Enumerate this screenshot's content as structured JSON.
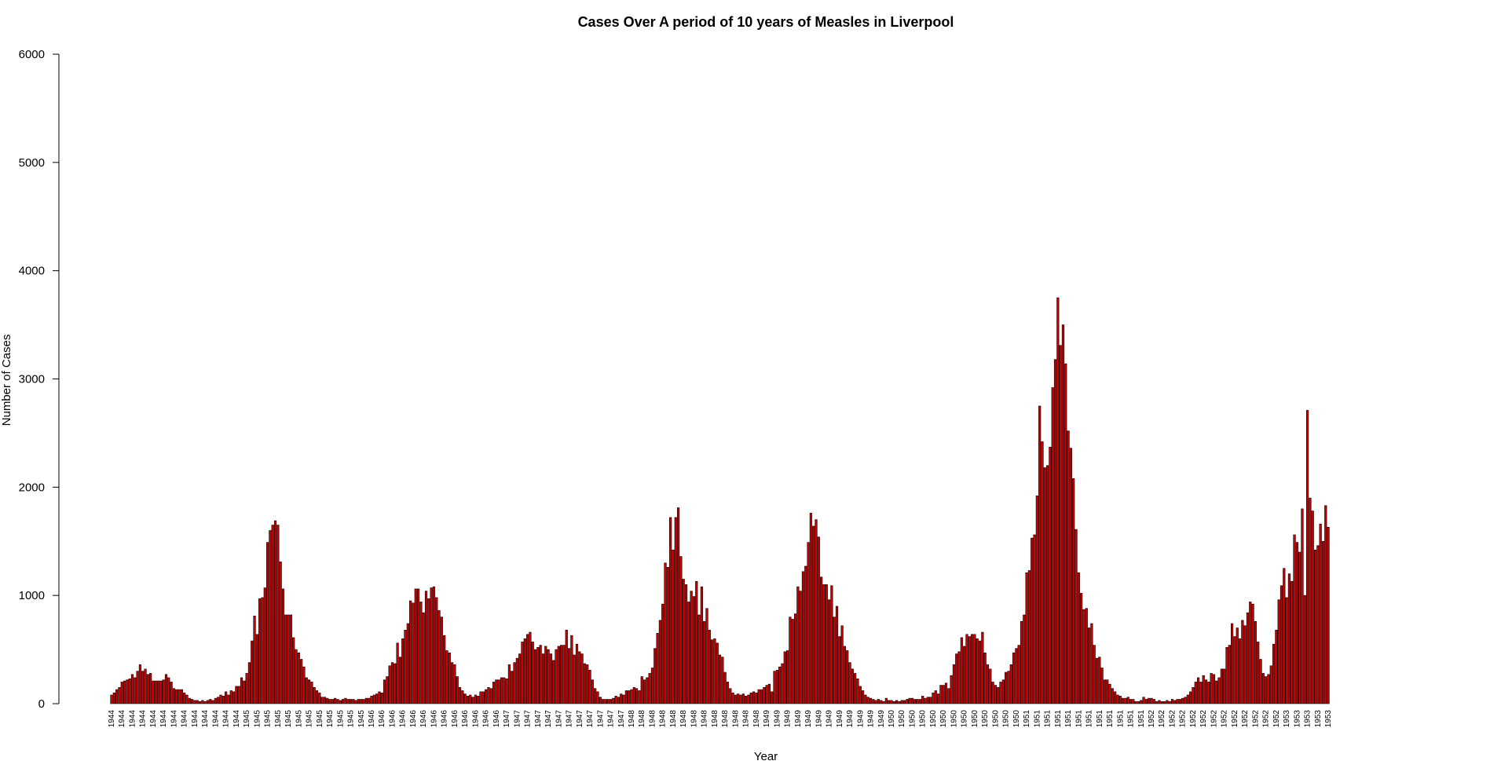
{
  "chart_data": {
    "type": "bar",
    "title": "Cases Over A period of 10 years of Measles in Liverpool",
    "xlabel": "Year",
    "ylabel": "Number of Cases",
    "ylim": [
      0,
      6000
    ],
    "yticks": [
      0,
      1000,
      2000,
      3000,
      4000,
      5000,
      6000
    ],
    "bar_color": "#cc0000",
    "bar_edge_color": "#000000",
    "grid": false,
    "legend": "none",
    "note": "Weekly counts, x tick labels show year; bars extend past right edge of plot (clipped).",
    "series": [
      {
        "year": "1944",
        "values": [
          80,
          100,
          130,
          150,
          200,
          210,
          220,
          230,
          270,
          240,
          300,
          360,
          300,
          320,
          270,
          280,
          210,
          210,
          210,
          210,
          220,
          270,
          240,
          200,
          140,
          130,
          130,
          130,
          100,
          80,
          50,
          40,
          30,
          30,
          20,
          30,
          20,
          30,
          40,
          30,
          50,
          60,
          80,
          70,
          110,
          80,
          120,
          110,
          160,
          160
        ]
      },
      {
        "year": "1945",
        "values": [
          240,
          210,
          280,
          380,
          580,
          810,
          640,
          970,
          980,
          1070,
          1490,
          1600,
          1650,
          1690,
          1650,
          1310,
          1060,
          820,
          820,
          820,
          610,
          500,
          470,
          410,
          340,
          240,
          220,
          200,
          150,
          120,
          100,
          60,
          60,
          50,
          40,
          40,
          50,
          40,
          30,
          40,
          50,
          40,
          40,
          40,
          30,
          40,
          40,
          40,
          50,
          50
        ]
      },
      {
        "year": "1946",
        "values": [
          70,
          80,
          90,
          110,
          100,
          220,
          250,
          350,
          380,
          370,
          560,
          430,
          600,
          680,
          740,
          950,
          930,
          1060,
          1060,
          940,
          840,
          1040,
          970,
          1070,
          1080,
          980,
          860,
          800,
          630,
          490,
          470,
          380,
          360,
          250,
          150,
          120,
          90,
          70,
          80,
          60,
          80,
          70,
          110,
          110,
          130,
          150,
          140,
          200,
          220,
          220
        ]
      },
      {
        "year": "1947",
        "values": [
          240,
          240,
          230,
          360,
          300,
          380,
          420,
          460,
          570,
          600,
          640,
          660,
          570,
          500,
          520,
          540,
          460,
          530,
          500,
          460,
          400,
          500,
          530,
          540,
          540,
          680,
          510,
          630,
          450,
          550,
          480,
          460,
          370,
          360,
          310,
          220,
          140,
          110,
          60,
          40,
          40,
          40,
          40,
          50,
          70,
          60,
          90,
          80,
          120,
          120
        ]
      },
      {
        "year": "1948",
        "values": [
          130,
          150,
          140,
          120,
          250,
          220,
          240,
          280,
          330,
          510,
          650,
          770,
          920,
          1300,
          1260,
          1720,
          1420,
          1720,
          1810,
          1360,
          1150,
          1100,
          940,
          1040,
          990,
          1130,
          820,
          1080,
          760,
          880,
          680,
          590,
          600,
          560,
          450,
          430,
          290,
          200,
          140,
          100,
          80,
          90,
          80,
          90,
          70,
          80,
          100,
          110,
          100,
          130
        ]
      },
      {
        "year": "1949",
        "values": [
          130,
          150,
          170,
          180,
          110,
          300,
          310,
          340,
          370,
          480,
          490,
          800,
          780,
          830,
          1080,
          1040,
          1220,
          1270,
          1490,
          1760,
          1640,
          1700,
          1540,
          1170,
          1100,
          1100,
          960,
          1090,
          800,
          900,
          620,
          720,
          530,
          490,
          380,
          320,
          280,
          230,
          160,
          120,
          80,
          60,
          50,
          40,
          30,
          40,
          30,
          20,
          50,
          30
        ]
      },
      {
        "year": "1950",
        "values": [
          30,
          20,
          30,
          20,
          30,
          30,
          40,
          50,
          50,
          40,
          40,
          40,
          70,
          50,
          60,
          60,
          100,
          120,
          90,
          170,
          170,
          190,
          140,
          260,
          360,
          460,
          480,
          610,
          530,
          640,
          620,
          640,
          640,
          600,
          580,
          660,
          470,
          360,
          320,
          200,
          170,
          150,
          200,
          220,
          290,
          300,
          360,
          470,
          510,
          540
        ]
      },
      {
        "year": "1951",
        "values": [
          760,
          820,
          1210,
          1230,
          1530,
          1560,
          1920,
          2750,
          2420,
          2180,
          2200,
          2370,
          2920,
          3180,
          3750,
          3310,
          3500,
          3140,
          2520,
          2360,
          2080,
          1610,
          1210,
          1020,
          870,
          880,
          700,
          740,
          540,
          420,
          430,
          330,
          220,
          220,
          180,
          140,
          110,
          80,
          70,
          50,
          50,
          60,
          40,
          40,
          20,
          20,
          30,
          60,
          40,
          50
        ]
      },
      {
        "year": "1952",
        "values": [
          50,
          40,
          20,
          30,
          20,
          20,
          30,
          20,
          40,
          30,
          40,
          40,
          50,
          60,
          80,
          110,
          150,
          200,
          240,
          200,
          260,
          220,
          200,
          280,
          270,
          210,
          240,
          320,
          320,
          520,
          540,
          740,
          620,
          700,
          600,
          770,
          720,
          840,
          940,
          920,
          760,
          570,
          410,
          280,
          250,
          270,
          350,
          550,
          680,
          960
        ]
      },
      {
        "year": "1953",
        "values": [
          1090,
          1250,
          980,
          1200,
          1130,
          1560,
          1490,
          1400,
          1800,
          1000,
          2710,
          1900,
          1780,
          1420,
          1460,
          1660,
          1500,
          1830,
          1630
        ]
      }
    ]
  }
}
